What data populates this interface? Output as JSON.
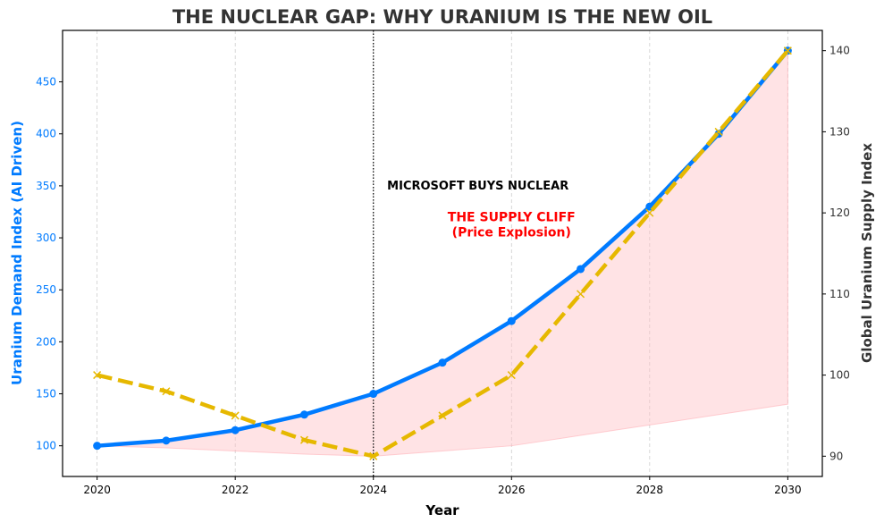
{
  "chart_data": {
    "type": "line",
    "title": "THE NUCLEAR GAP: WHY URANIUM IS THE NEW OIL",
    "xlabel": "Year",
    "ylabel_left": "Uranium Demand Index (AI Driven)",
    "ylabel_right": "Global Uranium Supply Index",
    "x": [
      2020,
      2021,
      2022,
      2023,
      2024,
      2025,
      2026,
      2027,
      2028,
      2029,
      2030
    ],
    "xlim": [
      2019.5,
      2030.5
    ],
    "xticks": [
      2020,
      2022,
      2024,
      2026,
      2028,
      2030
    ],
    "ylim_left": [
      70.5,
      499.5
    ],
    "yticks_left": [
      100,
      150,
      200,
      250,
      300,
      350,
      400,
      450
    ],
    "ylim_right": [
      87.5,
      142.5
    ],
    "yticks_right": [
      90,
      100,
      110,
      120,
      130,
      140
    ],
    "grid": "x-only, dashed",
    "series": [
      {
        "axis": "left",
        "style": "solid line with circle markers",
        "color": "#007bff",
        "values": [
          100,
          105,
          115,
          130,
          150,
          180,
          220,
          270,
          330,
          400,
          480
        ]
      },
      {
        "axis": "right",
        "style": "dashed line with x markers",
        "color": "#e6b800",
        "values": [
          100,
          98,
          95,
          92,
          90,
          95,
          100,
          110,
          120,
          130,
          140
        ]
      }
    ],
    "fill": {
      "color": "#ffc0c5",
      "between": "supply values (left scale) and demand"
    },
    "vline": {
      "x": 2024,
      "style": "dotted",
      "color": "#000000"
    },
    "annotations": [
      {
        "text": "MICROSOFT BUYS NUCLEAR",
        "x": 2024.2,
        "y": 350,
        "color": "#000000"
      },
      {
        "text": "THE SUPPLY CLIFF",
        "text2": "(Price Explosion)",
        "x": 2026,
        "y": 310,
        "color": "#ff0000"
      }
    ],
    "left_axis_color": "#007bff",
    "right_axis_color": "#333333"
  }
}
